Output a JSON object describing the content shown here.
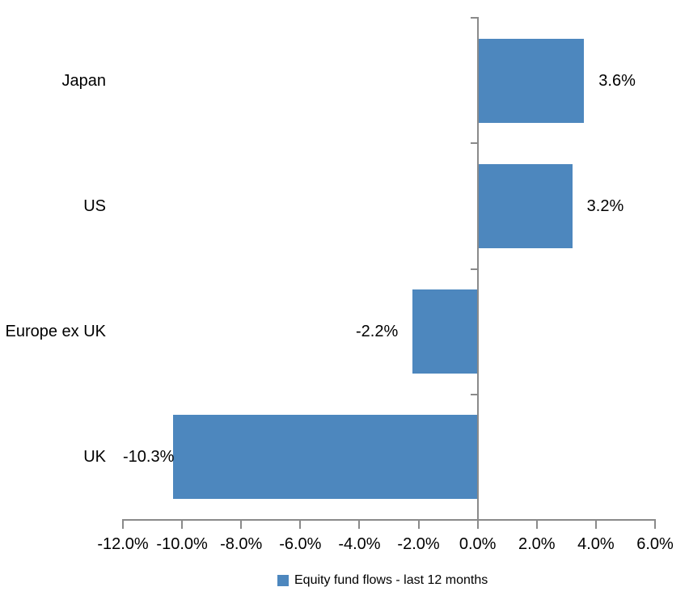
{
  "chart_data": {
    "type": "bar",
    "orientation": "horizontal",
    "title": "",
    "categories": [
      "Japan",
      "US",
      "Europe ex UK",
      "UK"
    ],
    "series": [
      {
        "name": "Equity fund flows - last 12 months",
        "values": [
          3.6,
          3.2,
          -2.2,
          -10.3
        ],
        "data_labels": [
          "3.6%",
          "3.2%",
          "-2.2%",
          "-10.3%"
        ]
      }
    ],
    "xlim": [
      -12,
      6
    ],
    "x_ticks": [
      -12,
      -10,
      -8,
      -6,
      -4,
      -2,
      0,
      2,
      4,
      6
    ],
    "x_tick_labels": [
      "-12.0%",
      "-10.0%",
      "-8.0%",
      "-6.0%",
      "-4.0%",
      "-2.0%",
      "0.0%",
      "2.0%",
      "4.0%",
      "6.0%"
    ],
    "grid": "off",
    "legend_position": "bottom",
    "bar_color": "#4D87BE",
    "axis_color": "#8A8A8A",
    "text_color": "#000000"
  },
  "legend": {
    "label": "Equity fund flows - last 12 months"
  }
}
